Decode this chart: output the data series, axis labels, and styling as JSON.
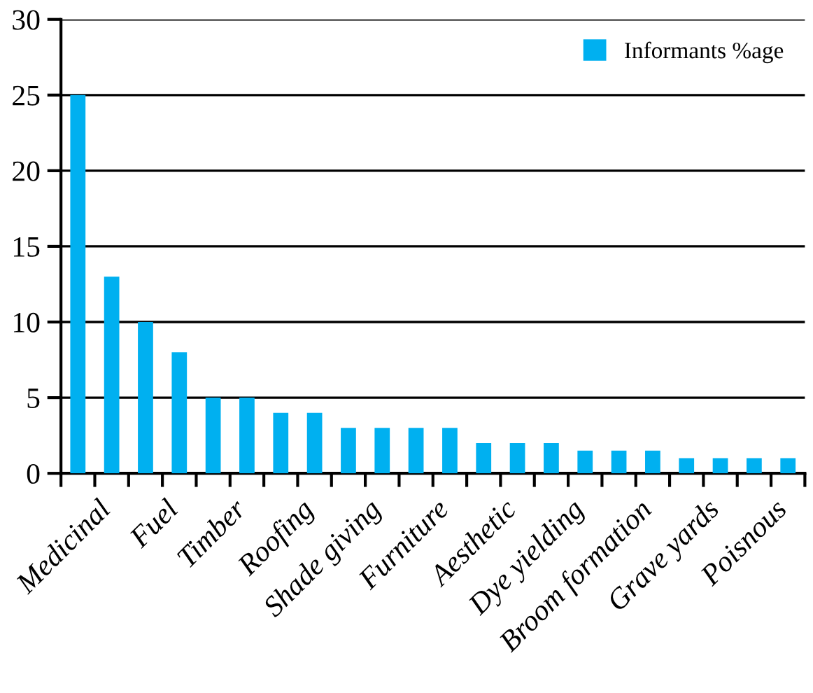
{
  "chart_data": {
    "type": "bar",
    "categories": [
      "Medicinal",
      null,
      "Fuel",
      null,
      "Timber",
      null,
      "Roofing",
      null,
      "Shade giving",
      null,
      "Furniture",
      null,
      "Aesthetic",
      null,
      "Dye yielding",
      null,
      "Broom formation",
      null,
      "Grave yards",
      null,
      "Poisnous",
      null
    ],
    "series": [
      {
        "name": "Informants %age",
        "color": "#00b0f0",
        "values": [
          25,
          13,
          10,
          8,
          5,
          5,
          4,
          4,
          3,
          3,
          3,
          3,
          2,
          2,
          2,
          1.5,
          1.5,
          1.5,
          1,
          1,
          1,
          1
        ]
      }
    ],
    "ylim": [
      0,
      30
    ],
    "yticks": [
      0,
      5,
      10,
      15,
      20,
      25,
      30
    ],
    "grid": "y",
    "legend": "top right"
  }
}
